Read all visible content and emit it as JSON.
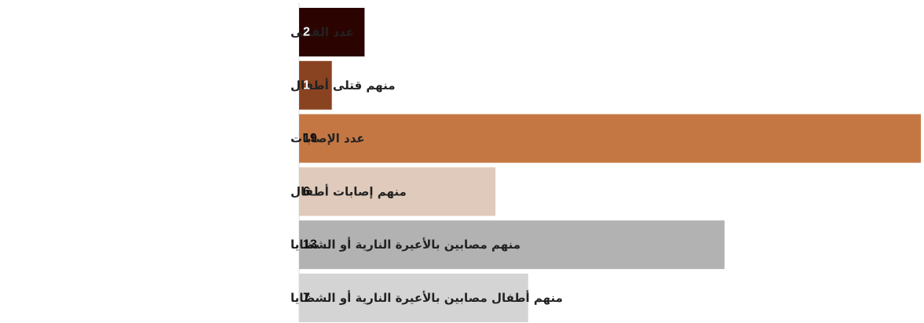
{
  "chart_data": {
    "type": "bar",
    "orientation": "horizontal",
    "categories": [
      "عدد القتلى",
      "منهم قتلى أطفال",
      "عدد الإصابات",
      "منهم إصابات أطفال",
      "منهم مصابين بالأعيرة النارية أو الشظايا",
      "منهم أطفال مصابين بالأعيرة النارية أو الشظايا"
    ],
    "values": [
      2,
      1,
      19,
      6,
      13,
      7
    ],
    "value_labels": [
      "2",
      "1",
      "19",
      "6",
      "13",
      "7"
    ],
    "bar_colors": [
      "#2b0402",
      "#8a4321",
      "#c57743",
      "#dfcabb",
      "#b2b2b2",
      "#d4d4d4"
    ],
    "value_label_colors": [
      "#ffffff",
      "#ffffff",
      "#111111",
      "#111111",
      "#111111",
      "#111111"
    ],
    "axis_line_color": "#dddddd",
    "xlim": [
      0,
      19
    ],
    "grid": false,
    "legend": "none",
    "title": "",
    "xlabel": "",
    "ylabel": ""
  }
}
